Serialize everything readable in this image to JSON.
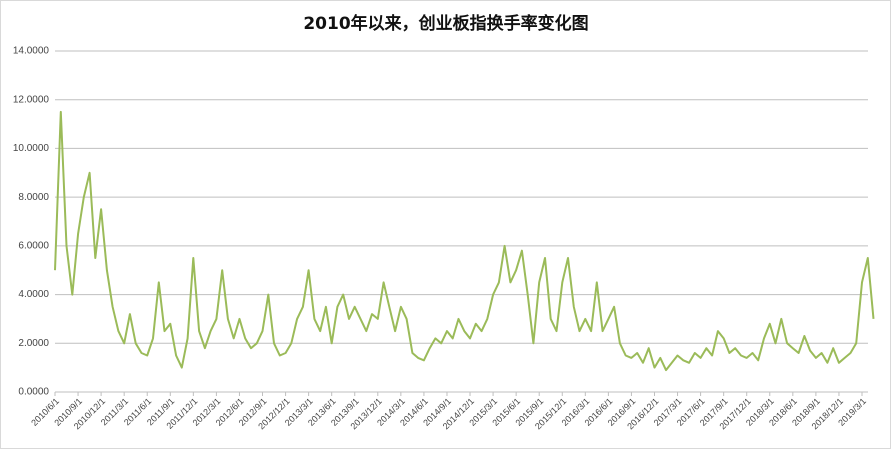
{
  "chart_data": {
    "type": "line",
    "title": "2010年以来，创业板指换手率变化图",
    "categories": [
      "2010/6/1",
      null,
      null,
      null,
      "2010/9/1",
      null,
      null,
      null,
      "2010/12/1",
      null,
      null,
      null,
      "2011/3/1",
      null,
      null,
      null,
      "2011/6/1",
      null,
      null,
      null,
      "2011/9/1",
      null,
      null,
      null,
      "2011/12/1",
      null,
      null,
      null,
      "2012/3/1",
      null,
      null,
      null,
      "2012/6/1",
      null,
      null,
      null,
      "2012/9/1",
      null,
      null,
      null,
      "2012/12/1",
      null,
      null,
      null,
      "2013/3/1",
      null,
      null,
      null,
      "2013/6/1",
      null,
      null,
      null,
      "2013/9/1",
      null,
      null,
      null,
      "2013/12/1",
      null,
      null,
      null,
      "2014/3/1",
      null,
      null,
      null,
      "2014/6/1",
      null,
      null,
      null,
      "2014/9/1",
      null,
      null,
      null,
      "2014/12/1",
      null,
      null,
      null,
      "2015/3/1",
      null,
      null,
      null,
      "2015/6/1",
      null,
      null,
      null,
      "2015/9/1",
      null,
      null,
      null,
      "2015/12/1",
      null,
      null,
      null,
      "2016/3/1",
      null,
      null,
      null,
      "2016/6/1",
      null,
      null,
      null,
      "2016/9/1",
      null,
      null,
      null,
      "2016/12/1",
      null,
      null,
      null,
      "2017/3/1",
      null,
      null,
      null,
      "2017/6/1",
      null,
      null,
      null,
      "2017/9/1",
      null,
      null,
      null,
      "2017/12/1",
      null,
      null,
      null,
      "2018/3/1",
      null,
      null,
      null,
      "2018/6/1",
      null,
      null,
      null,
      "2018/9/1",
      null,
      null,
      null,
      "2018/12/1",
      null,
      null,
      null,
      "2019/3/1",
      null,
      null
    ],
    "values": [
      5.0,
      11.5,
      6.0,
      4.0,
      6.5,
      8.0,
      9.0,
      5.5,
      7.5,
      5.0,
      3.5,
      2.5,
      2.0,
      3.2,
      2.0,
      1.6,
      1.5,
      2.2,
      4.5,
      2.5,
      2.8,
      1.5,
      1.0,
      2.2,
      5.5,
      2.5,
      1.8,
      2.5,
      3.0,
      5.0,
      3.0,
      2.2,
      3.0,
      2.2,
      1.8,
      2.0,
      2.5,
      4.0,
      2.0,
      1.5,
      1.6,
      2.0,
      3.0,
      3.5,
      5.0,
      3.0,
      2.5,
      3.5,
      2.0,
      3.5,
      4.0,
      3.0,
      3.5,
      3.0,
      2.5,
      3.2,
      3.0,
      4.5,
      3.5,
      2.5,
      3.5,
      3.0,
      1.6,
      1.4,
      1.3,
      1.8,
      2.2,
      2.0,
      2.5,
      2.2,
      3.0,
      2.5,
      2.2,
      2.8,
      2.5,
      3.0,
      4.0,
      4.5,
      6.0,
      4.5,
      5.0,
      5.8,
      4.0,
      2.0,
      4.5,
      5.5,
      3.0,
      2.5,
      4.5,
      5.5,
      3.5,
      2.5,
      3.0,
      2.5,
      4.5,
      2.5,
      3.0,
      3.5,
      2.0,
      1.5,
      1.4,
      1.6,
      1.2,
      1.8,
      1.0,
      1.4,
      0.9,
      1.2,
      1.5,
      1.3,
      1.2,
      1.6,
      1.4,
      1.8,
      1.5,
      2.5,
      2.2,
      1.6,
      1.8,
      1.5,
      1.4,
      1.6,
      1.3,
      2.2,
      2.8,
      2.0,
      3.0,
      2.0,
      1.8,
      1.6,
      2.3,
      1.7,
      1.4,
      1.6,
      1.2,
      1.8,
      1.2,
      1.4,
      1.6,
      2.0,
      4.5,
      5.5,
      3.0
    ],
    "color": "#9bbb59",
    "ylim": [
      0,
      14
    ],
    "yticks": [
      {
        "value": 0,
        "label": "0.0000"
      },
      {
        "value": 2,
        "label": "2.0000"
      },
      {
        "value": 4,
        "label": "4.0000"
      },
      {
        "value": 6,
        "label": "6.0000"
      },
      {
        "value": 8,
        "label": "8.0000"
      },
      {
        "value": 10,
        "label": "10.0000"
      },
      {
        "value": 12,
        "label": "12.0000"
      },
      {
        "value": 14,
        "label": "14.0000"
      }
    ],
    "grid": true
  }
}
